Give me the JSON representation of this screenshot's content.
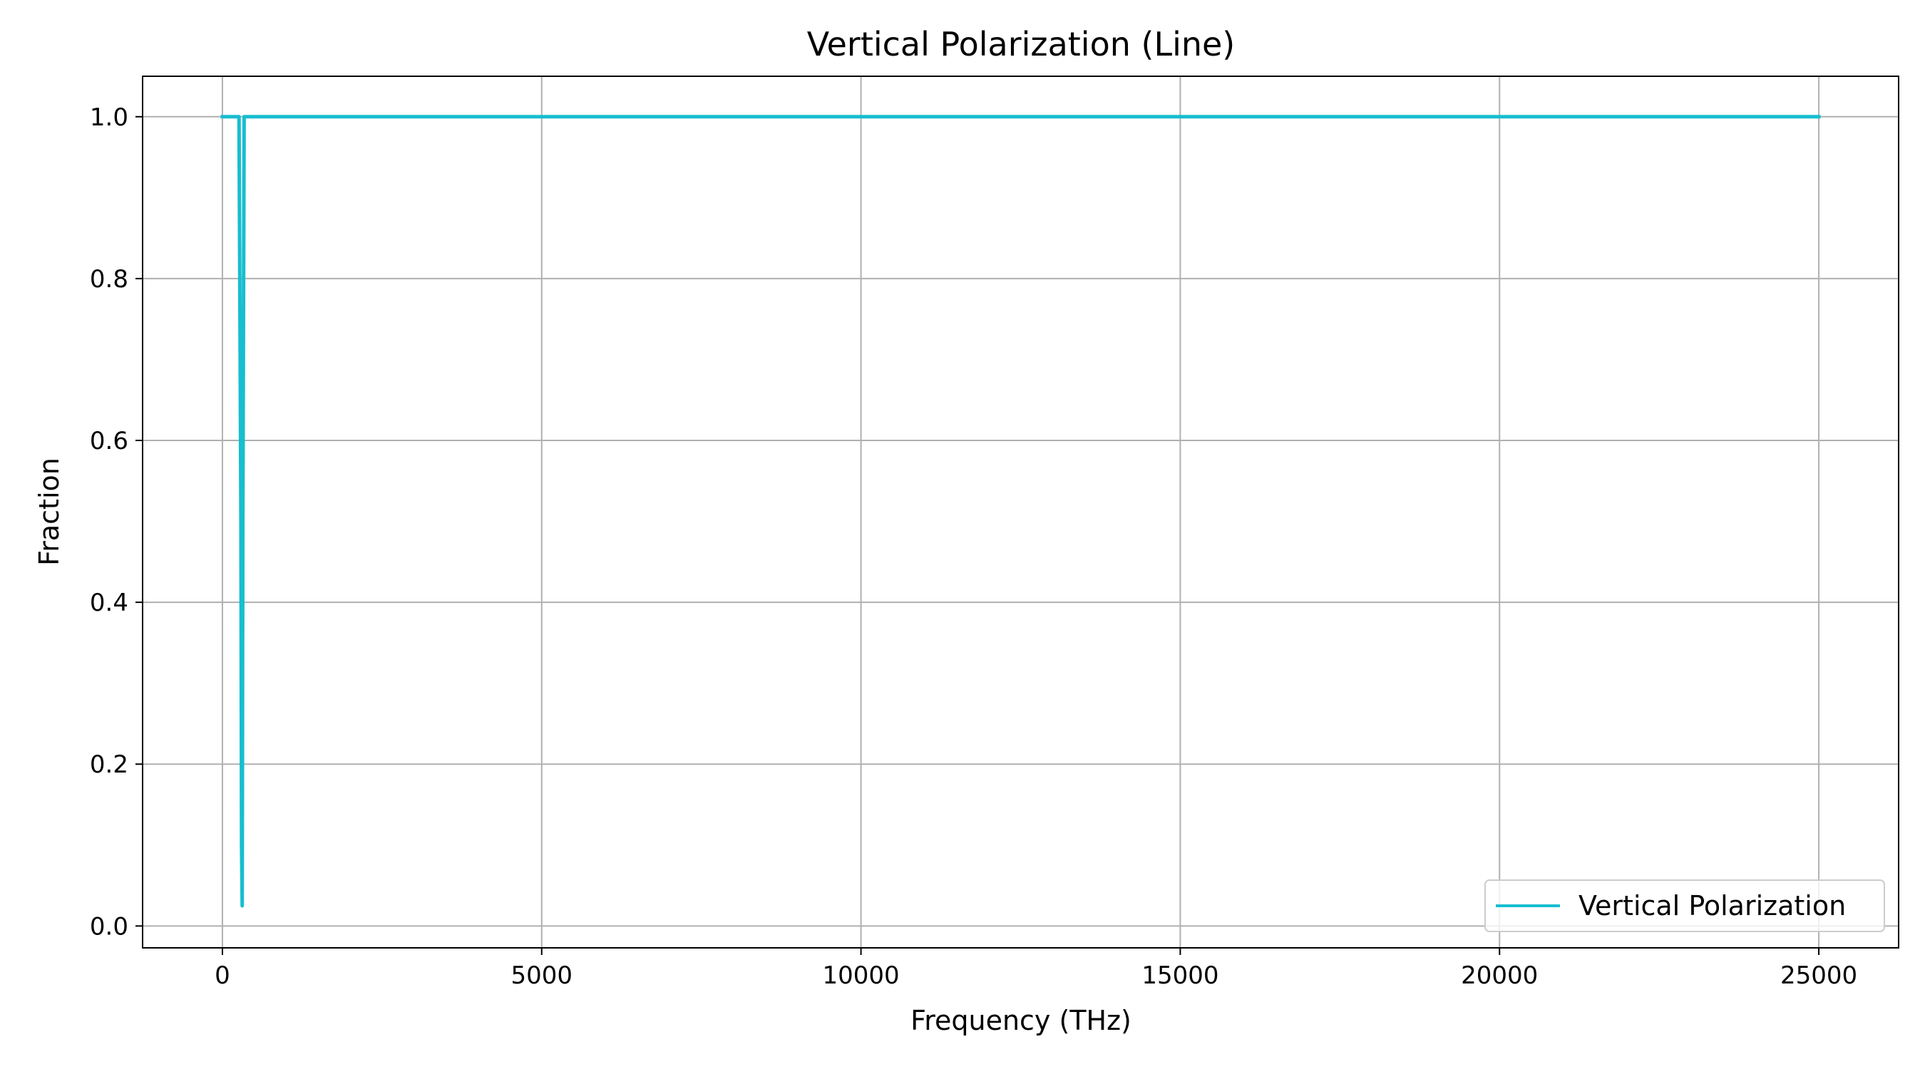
{
  "chart_data": {
    "type": "line",
    "title": "Vertical Polarization (Line)",
    "xlabel": "Frequency (THz)",
    "ylabel": "Fraction",
    "xlim": [
      -1250,
      26250
    ],
    "ylim": [
      -0.027,
      1.05
    ],
    "x_ticks": [
      0,
      5000,
      10000,
      15000,
      20000,
      25000
    ],
    "x_tick_labels": [
      "0",
      "5000",
      "10000",
      "15000",
      "20000",
      "25000"
    ],
    "y_ticks": [
      0.0,
      0.2,
      0.4,
      0.6,
      0.8,
      1.0
    ],
    "y_tick_labels": [
      "0.0",
      "0.2",
      "0.4",
      "0.6",
      "0.8",
      "1.0"
    ],
    "grid": true,
    "legend_position": "lower-right",
    "series": [
      {
        "name": "Vertical Polarization",
        "color": "#17becf",
        "x": [
          0,
          200,
          260,
          290,
          300,
          310,
          320,
          340,
          500,
          1000,
          2000,
          5000,
          10000,
          15000,
          20000,
          22500,
          23000,
          25000
        ],
        "y": [
          1.0,
          1.0,
          1.0,
          0.5,
          0.1,
          0.025,
          0.5,
          1.0,
          1.0,
          1.0,
          1.0,
          1.0,
          1.0,
          1.0,
          1.0,
          1.0,
          1.0,
          1.0
        ]
      }
    ]
  }
}
